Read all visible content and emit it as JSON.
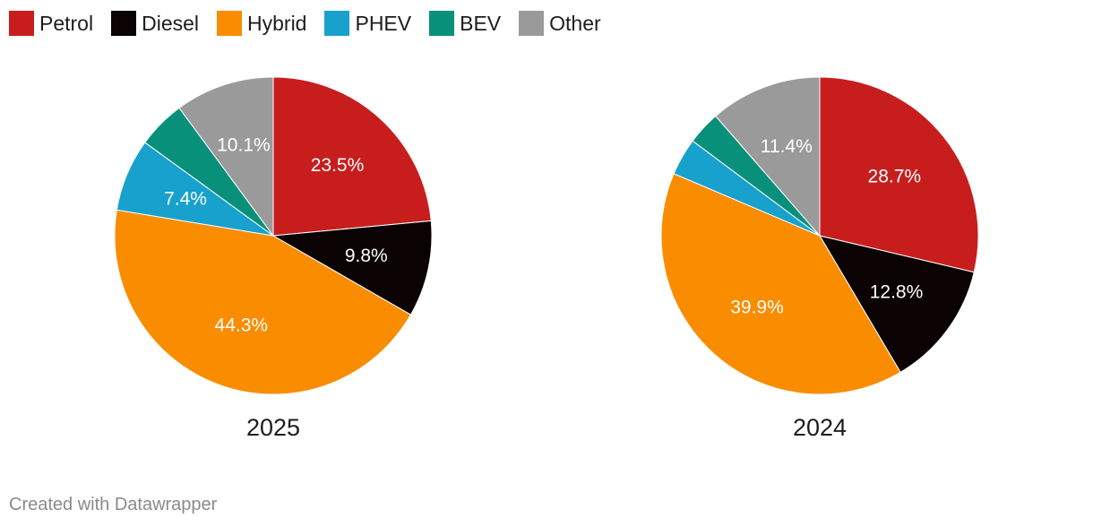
{
  "legend": [
    {
      "label": "Petrol",
      "color": "#c71e1d"
    },
    {
      "label": "Diesel",
      "color": "#0a0203"
    },
    {
      "label": "Hybrid",
      "color": "#fa8c00"
    },
    {
      "label": "PHEV",
      "color": "#18a1cd"
    },
    {
      "label": "BEV",
      "color": "#09907a"
    },
    {
      "label": "Other",
      "color": "#9a9a9a"
    }
  ],
  "footer": "Created with Datawrapper",
  "chart_data": [
    {
      "type": "pie",
      "title": "2025",
      "categories": [
        "Petrol",
        "Diesel",
        "Hybrid",
        "PHEV",
        "BEV",
        "Other"
      ],
      "values": [
        23.5,
        9.8,
        44.3,
        7.4,
        4.9,
        10.1
      ],
      "data_labels": [
        "23.5%",
        "9.8%",
        "44.3%",
        "7.4%",
        "",
        "10.1%"
      ]
    },
    {
      "type": "pie",
      "title": "2024",
      "categories": [
        "Petrol",
        "Diesel",
        "Hybrid",
        "PHEV",
        "BEV",
        "Other"
      ],
      "values": [
        28.7,
        12.8,
        39.9,
        3.8,
        3.4,
        11.4
      ],
      "data_labels": [
        "28.7%",
        "12.8%",
        "39.9%",
        "",
        "",
        "11.4%"
      ]
    }
  ]
}
